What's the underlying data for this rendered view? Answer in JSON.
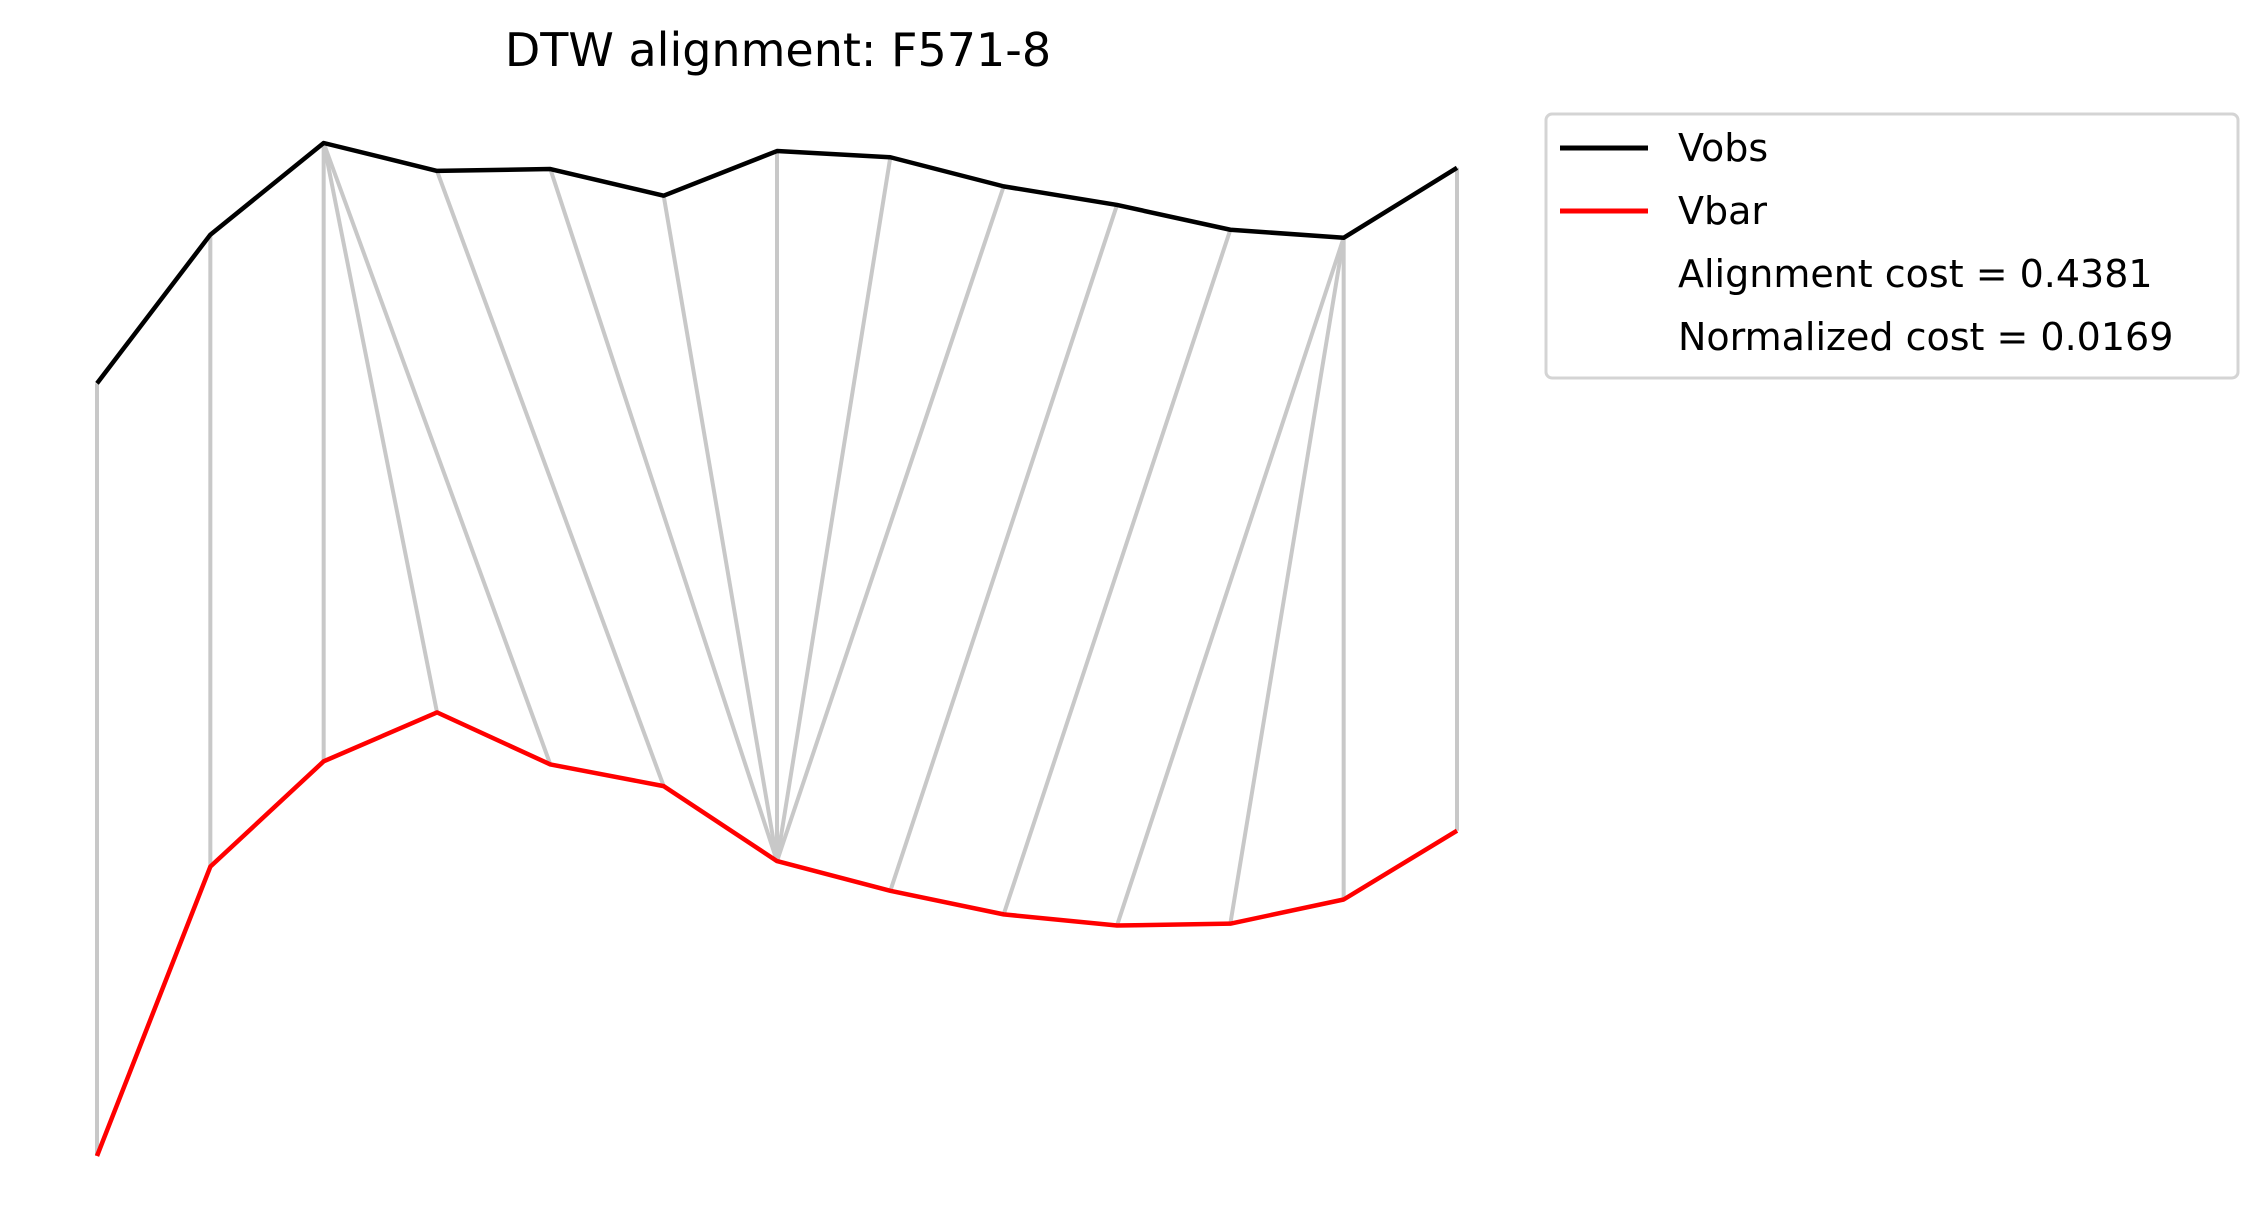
{
  "chart_data": {
    "type": "line",
    "title": "DTW alignment: F571-8",
    "axes_visible": false,
    "grid": false,
    "legend_placement": "outside-top-right",
    "x": [
      0,
      1,
      2,
      3,
      4,
      5,
      6,
      7,
      8,
      9,
      10,
      11,
      12
    ],
    "series": [
      {
        "name": "Vobs",
        "color": "#000000",
        "values": [
          0.842,
          1.082,
          1.23,
          1.185,
          1.188,
          1.145,
          1.217,
          1.207,
          1.16,
          1.13,
          1.09,
          1.077,
          1.19
        ]
      },
      {
        "name": "Vbar",
        "color": "#ff0000",
        "values": [
          -0.405,
          0.062,
          0.232,
          0.311,
          0.227,
          0.192,
          0.071,
          0.023,
          -0.015,
          -0.033,
          -0.03,
          0.009,
          0.12
        ]
      }
    ],
    "alignment_color": "#c8c8c8",
    "alignment_pairs": [
      [
        0,
        0
      ],
      [
        1,
        1
      ],
      [
        2,
        2
      ],
      [
        2,
        3
      ],
      [
        2,
        4
      ],
      [
        3,
        5
      ],
      [
        4,
        6
      ],
      [
        5,
        6
      ],
      [
        6,
        6
      ],
      [
        7,
        6
      ],
      [
        8,
        6
      ],
      [
        9,
        7
      ],
      [
        10,
        8
      ],
      [
        11,
        9
      ],
      [
        11,
        10
      ],
      [
        11,
        11
      ],
      [
        12,
        12
      ]
    ],
    "legend_entries": [
      {
        "name": "Vobs",
        "color": "#000000"
      },
      {
        "name": "Vbar",
        "color": "#ff0000"
      },
      {
        "name": "Alignment cost = 0.4381"
      },
      {
        "name": "Normalized cost = 0.0169"
      }
    ]
  }
}
